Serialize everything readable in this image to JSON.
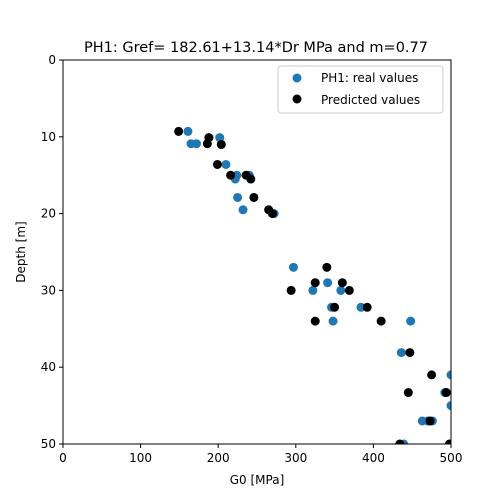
{
  "chart_data": {
    "type": "scatter",
    "title": "PH1: Gref= 182.61+13.14*Dr MPa and m=0.77",
    "xlabel": "G0 [MPa]",
    "ylabel": "Depth [m]",
    "xlim": [
      0,
      500
    ],
    "ylim": [
      0,
      50
    ],
    "y_inverted": true,
    "x_ticks": [
      0,
      100,
      200,
      300,
      400,
      500
    ],
    "y_ticks": [
      0,
      10,
      20,
      30,
      40,
      50
    ],
    "grid": false,
    "legend_position": "upper-right",
    "series": [
      {
        "name": "PH1: real values",
        "color": "#1f77b4",
        "x": [
          161,
          202,
          165,
          172,
          204,
          210,
          224,
          222,
          240,
          225,
          232,
          272,
          297,
          322,
          341,
          358,
          346,
          384,
          348,
          448,
          436,
          500,
          492,
          500,
          463,
          470,
          476,
          439
        ],
        "y": [
          9.3,
          10.1,
          10.9,
          10.9,
          11.0,
          13.6,
          15.0,
          15.5,
          15.0,
          17.9,
          19.5,
          20.0,
          27.0,
          30.0,
          29.0,
          30.0,
          32.2,
          32.2,
          34.0,
          34.0,
          38.1,
          41.0,
          43.3,
          45.0,
          47.0,
          47.0,
          47.0,
          50.0
        ]
      },
      {
        "name": "Predicted values",
        "color": "#000000",
        "x": [
          149,
          188,
          186,
          204,
          199,
          216,
          236,
          242,
          246,
          265,
          270,
          340,
          360,
          325,
          369,
          294,
          350,
          392,
          325,
          410,
          447,
          475,
          445,
          494,
          473,
          434,
          498
        ],
        "y": [
          9.3,
          10.1,
          10.9,
          11.0,
          13.6,
          15.0,
          15.0,
          15.5,
          17.9,
          19.5,
          20.0,
          27.0,
          29.0,
          29.0,
          30.0,
          30.0,
          32.2,
          32.2,
          34.0,
          34.0,
          38.1,
          41.0,
          43.3,
          43.3,
          47.0,
          50.0,
          50.0
        ]
      }
    ]
  }
}
